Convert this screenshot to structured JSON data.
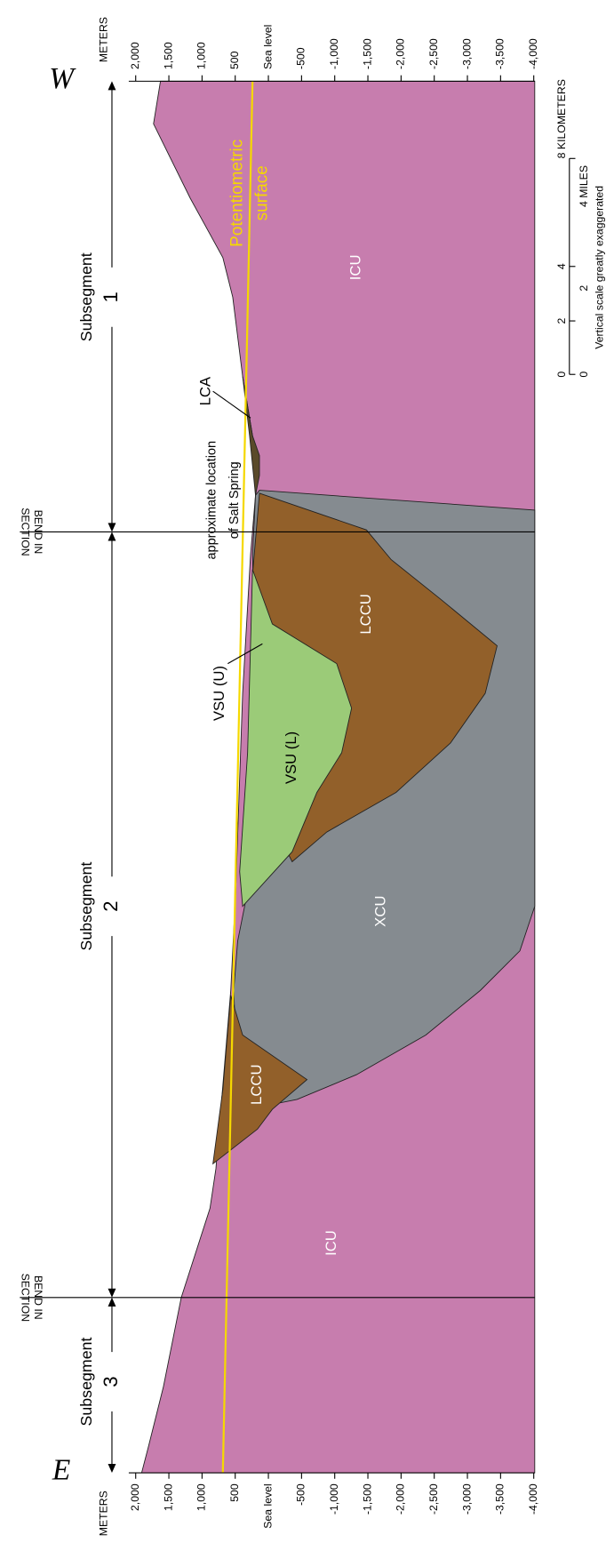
{
  "header": {
    "west": "W",
    "east": "E"
  },
  "depth_axis": {
    "title": "METERS",
    "ticks": [
      "2,000",
      "1,500",
      "1,000",
      "500",
      "Sea level",
      "-500",
      "-1,000",
      "-1,500",
      "-2,000",
      "-2,500",
      "-3,000",
      "-3,500",
      "-4,000"
    ]
  },
  "subsegments": [
    {
      "label": "Subsegment",
      "number": "1"
    },
    {
      "label": "Subsegment",
      "number": "2"
    },
    {
      "label": "Subsegment",
      "number": "3"
    }
  ],
  "bends": [
    {
      "line1": "BEND IN",
      "line2": "SECTION"
    },
    {
      "line1": "BEND IN",
      "line2": "SECTION"
    }
  ],
  "units": {
    "icu": "ICU",
    "lccu": "LCCU",
    "vsu_lower": "VSU (L)",
    "vsu_upper": "VSU (U)",
    "xcu": "XCU",
    "lca": "LCA"
  },
  "annotations": {
    "salt_spring_1": "approximate location",
    "salt_spring_2": "of Salt Spring",
    "potentiometric_1": "Potentiometric",
    "potentiometric_2": "surface"
  },
  "scale": {
    "km_label": "8 KILOMETERS",
    "km_ticks": [
      "4",
      "2",
      "0"
    ],
    "mi_label": "4 MILES",
    "mi_ticks": [
      "2",
      "0"
    ],
    "note": "Vertical scale greatly exaggerated"
  }
}
